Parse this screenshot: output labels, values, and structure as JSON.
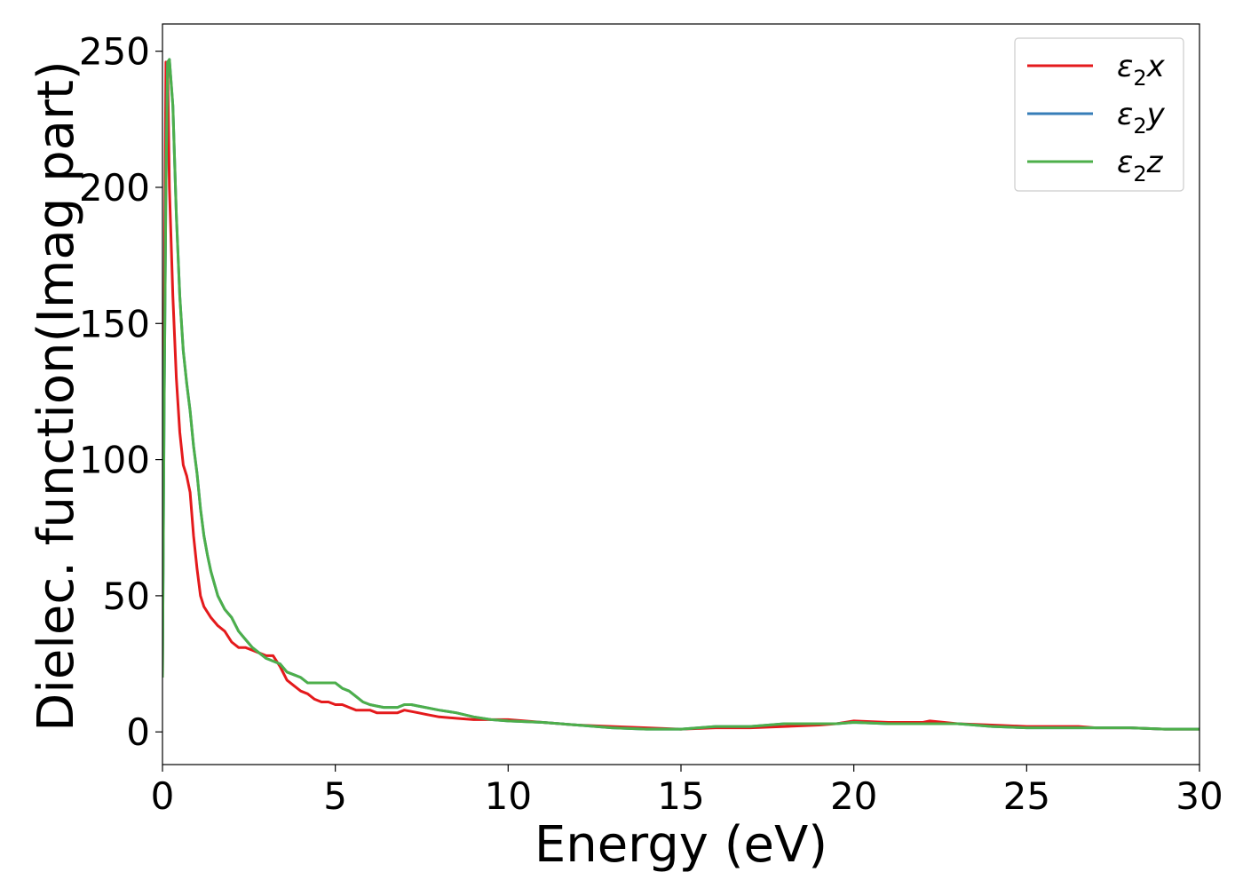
{
  "chart_data": {
    "type": "line",
    "title": "",
    "xlabel": "Energy (eV)",
    "ylabel": "Dielec. function(Imag part)",
    "xlim": [
      0,
      30
    ],
    "ylim": [
      -12,
      260
    ],
    "xticks": [
      0,
      5,
      10,
      15,
      20,
      25,
      30
    ],
    "yticks": [
      0,
      50,
      100,
      150,
      200,
      250
    ],
    "grid": false,
    "legend_position": "top-right",
    "series": [
      {
        "name": "ε₂x",
        "label_base": "ε",
        "label_sub": "2",
        "label_suffix": "x",
        "color": "#e41a1c",
        "x": [
          0,
          0.05,
          0.1,
          0.15,
          0.2,
          0.3,
          0.4,
          0.5,
          0.6,
          0.7,
          0.8,
          0.9,
          1.0,
          1.1,
          1.2,
          1.3,
          1.4,
          1.6,
          1.8,
          2.0,
          2.2,
          2.4,
          2.6,
          2.8,
          3.0,
          3.2,
          3.4,
          3.6,
          3.8,
          4.0,
          4.2,
          4.4,
          4.6,
          4.8,
          5.0,
          5.2,
          5.4,
          5.6,
          5.8,
          6.0,
          6.2,
          6.4,
          6.6,
          6.8,
          7.0,
          7.2,
          7.4,
          7.6,
          8.0,
          8.5,
          9.0,
          9.5,
          10,
          11,
          12,
          13,
          14,
          15,
          16,
          17,
          18,
          19,
          19.5,
          20,
          21,
          22,
          22.2,
          23,
          24,
          25,
          26,
          26.5,
          27,
          28,
          29,
          30
        ],
        "values": [
          20,
          150,
          246,
          245,
          200,
          160,
          130,
          110,
          98,
          94,
          88,
          72,
          60,
          50,
          46,
          44,
          42,
          39,
          37,
          33,
          31,
          31,
          30,
          29,
          28,
          28,
          24,
          19,
          17,
          15,
          14,
          12,
          11,
          11,
          10,
          10,
          9,
          8,
          8,
          8,
          7,
          7,
          7,
          7,
          8,
          7.5,
          7,
          6.5,
          5.5,
          5,
          4.5,
          4.5,
          4.5,
          3.5,
          2.5,
          2,
          1.5,
          1,
          1.5,
          1.5,
          2,
          2.5,
          3,
          4,
          3.5,
          3.5,
          4,
          3,
          2.5,
          2,
          2,
          2,
          1.5,
          1.5,
          1,
          1
        ]
      },
      {
        "name": "ε₂y",
        "label_base": "ε",
        "label_sub": "2",
        "label_suffix": "y",
        "color": "#377eb8",
        "x": [
          0,
          0.05,
          0.1,
          0.15,
          0.2,
          0.3,
          0.4,
          0.5,
          0.6,
          0.7,
          0.8,
          0.9,
          1.0,
          1.1,
          1.2,
          1.3,
          1.4,
          1.6,
          1.8,
          2.0,
          2.2,
          2.4,
          2.6,
          2.8,
          3.0,
          3.2,
          3.4,
          3.6,
          3.8,
          4.0,
          4.2,
          4.4,
          4.6,
          4.8,
          5.0,
          5.2,
          5.4,
          5.6,
          5.8,
          6.0,
          6.2,
          6.4,
          6.6,
          6.8,
          7.0,
          7.2,
          7.4,
          7.6,
          8.0,
          8.5,
          9.0,
          9.5,
          10,
          11,
          12,
          13,
          14,
          15,
          16,
          17,
          18,
          19,
          19.5,
          20,
          21,
          22,
          23,
          24,
          25,
          26,
          27,
          28,
          29,
          30
        ],
        "values": [
          20,
          120,
          200,
          246,
          247,
          230,
          190,
          160,
          140,
          128,
          118,
          105,
          95,
          82,
          72,
          65,
          59,
          50,
          45,
          42,
          37,
          34,
          31,
          29,
          27,
          26,
          25,
          22,
          21,
          20,
          18,
          18,
          18,
          18,
          18,
          16,
          15,
          13,
          11,
          10,
          9.5,
          9,
          9,
          9,
          10,
          10,
          9.5,
          9,
          8,
          7,
          5.5,
          4.5,
          4,
          3.5,
          2.5,
          1.5,
          1,
          1,
          2,
          2,
          3,
          3,
          3,
          3.5,
          3,
          3,
          3,
          2,
          1.5,
          1.5,
          1.5,
          1.5,
          1,
          1
        ]
      },
      {
        "name": "ε₂z",
        "label_base": "ε",
        "label_sub": "2",
        "label_suffix": "z",
        "color": "#4daf4a",
        "x": [
          0,
          0.05,
          0.1,
          0.15,
          0.2,
          0.3,
          0.4,
          0.5,
          0.6,
          0.7,
          0.8,
          0.9,
          1.0,
          1.1,
          1.2,
          1.3,
          1.4,
          1.6,
          1.8,
          2.0,
          2.2,
          2.4,
          2.6,
          2.8,
          3.0,
          3.2,
          3.4,
          3.6,
          3.8,
          4.0,
          4.2,
          4.4,
          4.6,
          4.8,
          5.0,
          5.2,
          5.4,
          5.6,
          5.8,
          6.0,
          6.2,
          6.4,
          6.6,
          6.8,
          7.0,
          7.2,
          7.4,
          7.6,
          8.0,
          8.5,
          9.0,
          9.5,
          10,
          11,
          12,
          13,
          14,
          15,
          16,
          17,
          18,
          19,
          19.5,
          20,
          21,
          22,
          23,
          24,
          25,
          26,
          27,
          28,
          29,
          30
        ],
        "values": [
          20,
          120,
          200,
          246,
          247,
          230,
          190,
          160,
          140,
          128,
          118,
          105,
          95,
          82,
          72,
          65,
          59,
          50,
          45,
          42,
          37,
          34,
          31,
          29,
          27,
          26,
          25,
          22,
          21,
          20,
          18,
          18,
          18,
          18,
          18,
          16,
          15,
          13,
          11,
          10,
          9.5,
          9,
          9,
          9,
          10,
          10,
          9.5,
          9,
          8,
          7,
          5.5,
          4.5,
          4,
          3.5,
          2.5,
          1.5,
          1,
          1,
          2,
          2,
          3,
          3,
          3,
          3.5,
          3,
          3,
          3,
          2,
          1.5,
          1.5,
          1.5,
          1.5,
          1,
          1
        ]
      }
    ]
  }
}
